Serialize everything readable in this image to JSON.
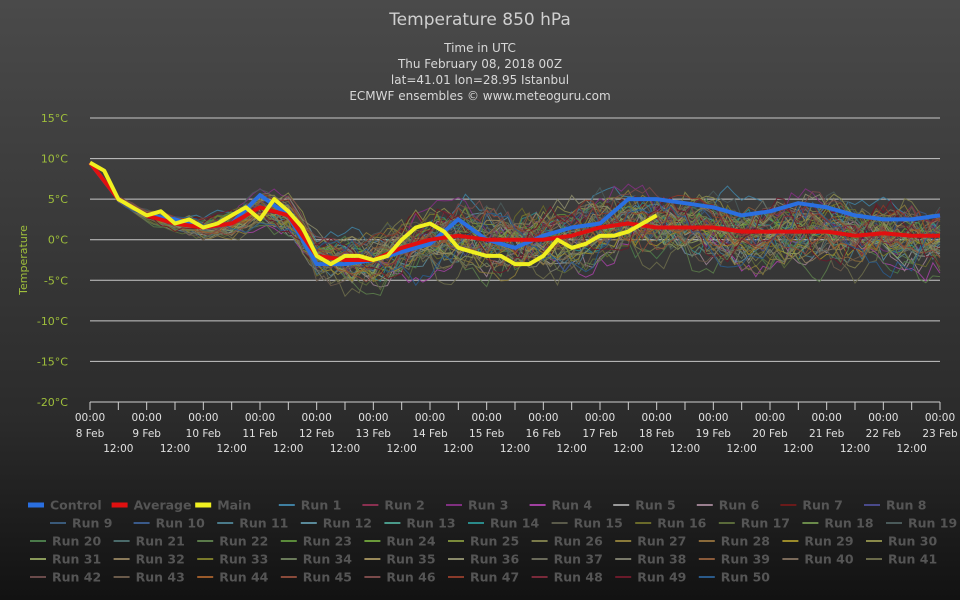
{
  "chart_data": {
    "type": "line",
    "title": "Temperature 850 hPa",
    "subtitle": [
      "Time in UTC",
      "Thu February 08, 2018 00Z",
      "lat=41.01 lon=28.95 Istanbul",
      "ECMWF ensembles © www.meteoguru.com"
    ],
    "ylabel": "Temperature",
    "y_ticks": [
      "15°C",
      "10°C",
      "5°C",
      "0°C",
      "-5°C",
      "-10°C",
      "-15°C",
      "-20°C"
    ],
    "ylim": [
      -20,
      15
    ],
    "xlim_days": [
      0,
      15
    ],
    "x_ticks_major": [
      {
        "time": "00:00",
        "date": "8 Feb"
      },
      {
        "time": "00:00",
        "date": "9 Feb"
      },
      {
        "time": "00:00",
        "date": "10 Feb"
      },
      {
        "time": "00:00",
        "date": "11 Feb"
      },
      {
        "time": "00:00",
        "date": "12 Feb"
      },
      {
        "time": "00:00",
        "date": "13 Feb"
      },
      {
        "time": "00:00",
        "date": "14 Feb"
      },
      {
        "time": "00:00",
        "date": "15 Feb"
      },
      {
        "time": "00:00",
        "date": "16 Feb"
      },
      {
        "time": "00:00",
        "date": "17 Feb"
      },
      {
        "time": "00:00",
        "date": "18 Feb"
      },
      {
        "time": "00:00",
        "date": "19 Feb"
      },
      {
        "time": "00:00",
        "date": "20 Feb"
      },
      {
        "time": "00:00",
        "date": "21 Feb"
      },
      {
        "time": "00:00",
        "date": "22 Feb"
      },
      {
        "time": "00:00",
        "date": "23 Feb"
      }
    ],
    "x_ticks_minor_label": "12:00",
    "grid": true,
    "legend_position": "bottom",
    "series": [
      {
        "name": "Control",
        "color": "#2a6fe0",
        "x": [
          0,
          0.5,
          1,
          1.5,
          2,
          2.5,
          3,
          3.5,
          4,
          4.5,
          5,
          5.5,
          6,
          6.5,
          7,
          7.5,
          8,
          8.5,
          9,
          9.5,
          10,
          10.5,
          11,
          11.5,
          12,
          12.5,
          13,
          13.5,
          14,
          14.5,
          15
        ],
        "y": [
          9.5,
          5,
          3,
          2.5,
          1.5,
          2,
          5.5,
          3,
          -3,
          -3,
          -2.5,
          -1.5,
          -0.5,
          2.5,
          0,
          -1,
          0.5,
          1.5,
          2,
          5,
          5,
          4.5,
          4,
          3,
          3.5,
          4.5,
          4,
          3,
          2.5,
          2.5,
          3
        ]
      },
      {
        "name": "Average",
        "color": "#e01010",
        "x": [
          0,
          0.5,
          1,
          1.5,
          2,
          2.5,
          3,
          3.5,
          4,
          4.5,
          5,
          5.5,
          6,
          6.5,
          7,
          7.5,
          8,
          8.5,
          9,
          9.5,
          10,
          10.5,
          11,
          11.5,
          12,
          12.5,
          13,
          13.5,
          14,
          14.5,
          15
        ],
        "y": [
          9.5,
          5,
          3,
          2,
          1.5,
          2,
          4,
          3,
          -2,
          -2.5,
          -2.5,
          -1,
          0,
          0.5,
          0,
          0,
          0,
          0.5,
          1.5,
          2,
          1.5,
          1.5,
          1.5,
          1,
          1,
          1,
          1,
          0.5,
          0.8,
          0.5,
          0.5
        ]
      },
      {
        "name": "Main",
        "color": "#f0f020",
        "x": [
          0,
          0.25,
          0.5,
          0.75,
          1,
          1.25,
          1.5,
          1.75,
          2,
          2.25,
          2.5,
          2.75,
          3,
          3.25,
          3.5,
          3.75,
          4,
          4.25,
          4.5,
          4.75,
          5,
          5.25,
          5.5,
          5.75,
          6,
          6.25,
          6.5,
          6.75,
          7,
          7.25,
          7.5,
          7.75,
          8,
          8.25,
          8.5,
          8.75,
          9,
          9.25,
          9.5,
          9.75,
          10
        ],
        "y": [
          9.5,
          8.5,
          5,
          4,
          3,
          3.5,
          2,
          2.5,
          1.5,
          2,
          3,
          4,
          2.5,
          5,
          3.5,
          1.5,
          -2,
          -3,
          -2,
          -2,
          -2.5,
          -2,
          0,
          1.5,
          2,
          1,
          -1,
          -1.5,
          -2,
          -2,
          -3,
          -3,
          -2,
          0,
          -1,
          -0.5,
          0.5,
          0.5,
          1,
          2,
          3
        ]
      }
    ],
    "runs": {
      "count": 50,
      "label_prefix": "Run",
      "start_day": 0,
      "end_day": 15
    }
  },
  "legend": {
    "items": [
      {
        "label": "Control",
        "color": "#2a6fe0",
        "bold_swatch": true
      },
      {
        "label": "Average",
        "color": "#e01010",
        "bold_swatch": true
      },
      {
        "label": "Main",
        "color": "#f0f020",
        "bold_swatch": true
      },
      {
        "label": "Run 1",
        "color": "#3f7fa0"
      },
      {
        "label": "Run 2",
        "color": "#8a3050"
      },
      {
        "label": "Run 3",
        "color": "#803080"
      },
      {
        "label": "Run 4",
        "color": "#a040a0"
      },
      {
        "label": "Run 5",
        "color": "#999999"
      },
      {
        "label": "Run 6",
        "color": "#9a7f8f"
      },
      {
        "label": "Run 7",
        "color": "#6a1a1a"
      },
      {
        "label": "Run 8",
        "color": "#4a4a8a"
      },
      {
        "label": "Run 9",
        "color": "#3a5a7a"
      },
      {
        "label": "Run 10",
        "color": "#3a5a8a"
      },
      {
        "label": "Run 11",
        "color": "#4a7a8a"
      },
      {
        "label": "Run 12",
        "color": "#5a8a9a"
      },
      {
        "label": "Run 13",
        "color": "#4a9a8a"
      },
      {
        "label": "Run 14",
        "color": "#2a8a8a"
      },
      {
        "label": "Run 15",
        "color": "#5a5a4a"
      },
      {
        "label": "Run 16",
        "color": "#6a6a2a"
      },
      {
        "label": "Run 17",
        "color": "#5a6a3a"
      },
      {
        "label": "Run 18",
        "color": "#6a8a4a"
      },
      {
        "label": "Run 19",
        "color": "#4a5a5a"
      },
      {
        "label": "Run 20",
        "color": "#4a7a4a"
      },
      {
        "label": "Run 21",
        "color": "#4a6a6a"
      },
      {
        "label": "Run 22",
        "color": "#5a7a4a"
      },
      {
        "label": "Run 23",
        "color": "#5a8a3a"
      },
      {
        "label": "Run 24",
        "color": "#6a9a3a"
      },
      {
        "label": "Run 25",
        "color": "#7a8a3a"
      },
      {
        "label": "Run 26",
        "color": "#7a7a4a"
      },
      {
        "label": "Run 27",
        "color": "#8a7a3a"
      },
      {
        "label": "Run 28",
        "color": "#8a6a3a"
      },
      {
        "label": "Run 29",
        "color": "#9a8a2a"
      },
      {
        "label": "Run 30",
        "color": "#8a8a4a"
      },
      {
        "label": "Run 31",
        "color": "#8a9a5a"
      },
      {
        "label": "Run 32",
        "color": "#8a7a5a"
      },
      {
        "label": "Run 33",
        "color": "#7a7a2a"
      },
      {
        "label": "Run 34",
        "color": "#6a7a5a"
      },
      {
        "label": "Run 35",
        "color": "#9a8a5a"
      },
      {
        "label": "Run 36",
        "color": "#8a8a6a"
      },
      {
        "label": "Run 37",
        "color": "#6a6a5a"
      },
      {
        "label": "Run 38",
        "color": "#7a7a6a"
      },
      {
        "label": "Run 39",
        "color": "#8a5a3a"
      },
      {
        "label": "Run 40",
        "color": "#7a6a5a"
      },
      {
        "label": "Run 41",
        "color": "#6a6a4a"
      },
      {
        "label": "Run 42",
        "color": "#6a4a4a"
      },
      {
        "label": "Run 43",
        "color": "#6a5a4a"
      },
      {
        "label": "Run 44",
        "color": "#9a5a2a"
      },
      {
        "label": "Run 45",
        "color": "#8a4a3a"
      },
      {
        "label": "Run 46",
        "color": "#7a4a4a"
      },
      {
        "label": "Run 47",
        "color": "#8a3a2a"
      },
      {
        "label": "Run 48",
        "color": "#7a2a3a"
      },
      {
        "label": "Run 49",
        "color": "#6a1a2a"
      },
      {
        "label": "Run 50",
        "color": "#2a5a8a"
      }
    ]
  }
}
